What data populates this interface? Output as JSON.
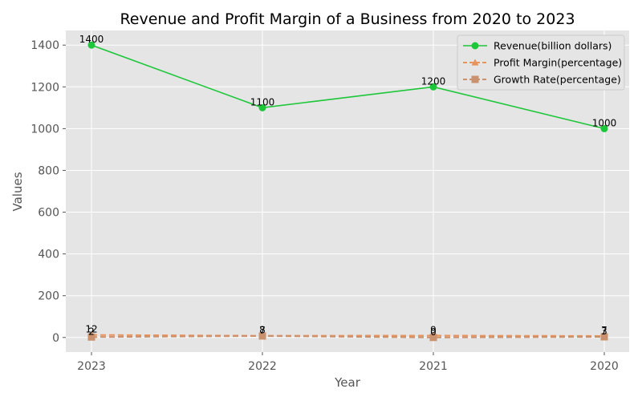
{
  "chart_data": {
    "type": "line",
    "title": "Revenue and Profit Margin of a Business from 2020 to 2023",
    "xlabel": "Year",
    "ylabel": "Values",
    "categories": [
      "2023",
      "2022",
      "2021",
      "2020"
    ],
    "ylim": [
      -70,
      1470
    ],
    "yticks": [
      0,
      200,
      400,
      600,
      800,
      1000,
      1200,
      1400
    ],
    "grid": true,
    "legend_position": "top-right",
    "series": [
      {
        "name": "Revenue(billion dollars)",
        "values": [
          1400,
          1100,
          1200,
          1000
        ],
        "color": "#1ec73a",
        "marker": "circle",
        "dash": "solid"
      },
      {
        "name": "Profit Margin(percentage)",
        "values": [
          12,
          8,
          9,
          7
        ],
        "color": "#e8925c",
        "marker": "triangle",
        "dash": "dashed"
      },
      {
        "name": "Growth Rate(percentage)",
        "values": [
          2,
          7,
          0,
          3
        ],
        "color": "#c9916e",
        "marker": "square",
        "dash": "dashed"
      }
    ]
  }
}
